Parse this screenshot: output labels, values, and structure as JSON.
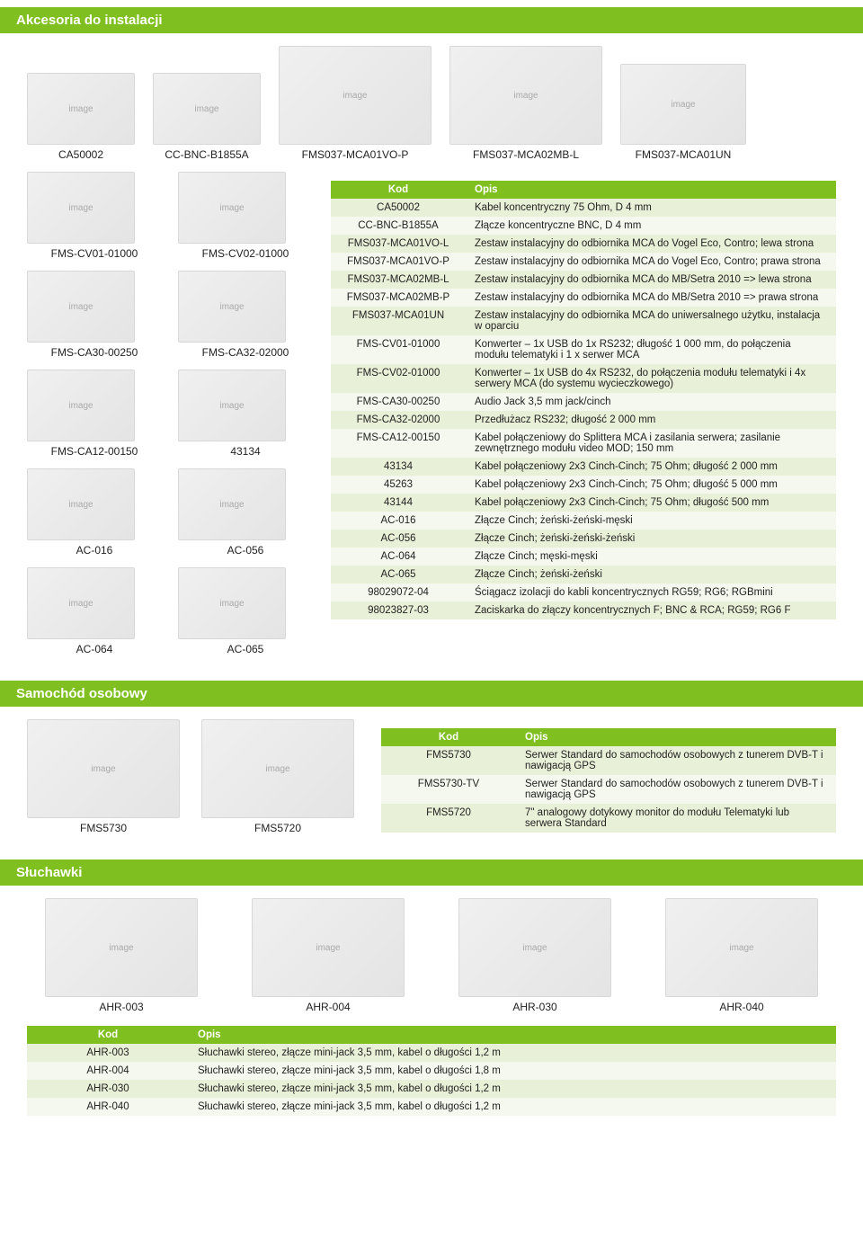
{
  "sections": {
    "s1": {
      "title": "Akcesoria do instalacji"
    },
    "s2": {
      "title": "Samochód osobowy"
    },
    "s3": {
      "title": "Słuchawki"
    }
  },
  "topRow": {
    "p1": "CA50002",
    "p2": "CC-BNC-B1855A",
    "p3": "FMS037-MCA01VO-P",
    "p4": "FMS037-MCA02MB-L",
    "p5": "FMS037-MCA01UN"
  },
  "leftProducts": [
    {
      "a": "FMS-CV01-01000",
      "b": "FMS-CV02-01000"
    },
    {
      "a": "FMS-CA30-00250",
      "b": "FMS-CA32-02000"
    },
    {
      "a": "FMS-CA12-00150",
      "b": "43134"
    },
    {
      "a": "AC-016",
      "b": "AC-056"
    },
    {
      "a": "AC-064",
      "b": "AC-065"
    }
  ],
  "tbl1": {
    "headers": {
      "c1": "Kod",
      "c2": "Opis"
    },
    "rows": [
      {
        "code": "CA50002",
        "desc": "Kabel koncentryczny 75 Ohm, D 4 mm"
      },
      {
        "code": "CC-BNC-B1855A",
        "desc": "Złącze koncentryczne BNC, D 4 mm"
      },
      {
        "code": "FMS037-MCA01VO-L",
        "desc": "Zestaw instalacyjny do odbiornika MCA do Vogel Eco, Contro; lewa strona"
      },
      {
        "code": "FMS037-MCA01VO-P",
        "desc": "Zestaw instalacyjny do odbiornika MCA do Vogel Eco, Contro; prawa strona"
      },
      {
        "code": "FMS037-MCA02MB-L",
        "desc": "Zestaw instalacyjny do odbiornika MCA do MB/Setra 2010 => lewa strona"
      },
      {
        "code": "FMS037-MCA02MB-P",
        "desc": "Zestaw instalacyjny do odbiornika MCA do MB/Setra 2010 => prawa strona"
      },
      {
        "code": "FMS037-MCA01UN",
        "desc": "Zestaw instalacyjny do odbiornika MCA do uniwersalnego użytku, instalacja w oparciu"
      },
      {
        "code": "FMS-CV01-01000",
        "desc": "Konwerter – 1x USB do 1x RS232; długość 1 000 mm, do połączenia modułu telematyki i 1 x serwer MCA"
      },
      {
        "code": "FMS-CV02-01000",
        "desc": "Konwerter – 1x USB do 4x RS232, do połączenia modułu telematyki i 4x serwery MCA (do systemu wycieczkowego)"
      },
      {
        "code": "FMS-CA30-00250",
        "desc": "Audio Jack 3,5 mm jack/cinch"
      },
      {
        "code": "FMS-CA32-02000",
        "desc": "Przedłużacz RS232; długość 2 000 mm"
      },
      {
        "code": "FMS-CA12-00150",
        "desc": "Kabel połączeniowy do Splittera MCA i zasilania serwera; zasilanie zewnętrznego modułu video MOD; 150 mm"
      },
      {
        "code": "43134",
        "desc": "Kabel połączeniowy 2x3 Cinch-Cinch; 75 Ohm; długość 2 000 mm"
      },
      {
        "code": "45263",
        "desc": "Kabel połączeniowy 2x3 Cinch-Cinch; 75 Ohm; długość 5 000 mm"
      },
      {
        "code": "43144",
        "desc": "Kabel połączeniowy 2x3 Cinch-Cinch; 75 Ohm; długość 500 mm"
      },
      {
        "code": "AC-016",
        "desc": "Złącze Cinch; żeński-żeński-męski"
      },
      {
        "code": "AC-056",
        "desc": "Złącze Cinch; żeński-żeński-żeński"
      },
      {
        "code": "AC-064",
        "desc": "Złącze Cinch; męski-męski"
      },
      {
        "code": "AC-065",
        "desc": "Złącze Cinch; żeński-żeński"
      },
      {
        "code": "98029072-04",
        "desc": "Ściągacz izolacji do kabli koncentrycznych RG59; RG6; RGBmini"
      },
      {
        "code": "98023827-03",
        "desc": "Zaciskarka do złączy koncentrycznych F; BNC & RCA; RG59; RG6 F"
      }
    ]
  },
  "sec2": {
    "p1": "FMS5730",
    "p2": "FMS5720",
    "headers": {
      "c1": "Kod",
      "c2": "Opis"
    },
    "rows": [
      {
        "code": "FMS5730",
        "desc": "Serwer Standard do samochodów osobowych z tunerem DVB-T i nawigacją GPS"
      },
      {
        "code": "FMS5730-TV",
        "desc": "Serwer Standard do samochodów osobowych z tunerem DVB-T i nawigacją GPS"
      },
      {
        "code": "FMS5720",
        "desc": "7\" analogowy dotykowy monitor do modułu Telematyki lub serwera Standard"
      }
    ]
  },
  "sec3": {
    "products": [
      "AHR-003",
      "AHR-004",
      "AHR-030",
      "AHR-040"
    ],
    "headers": {
      "c1": "Kod",
      "c2": "Opis"
    },
    "rows": [
      {
        "code": "AHR-003",
        "desc": "Słuchawki stereo, złącze mini-jack 3,5 mm, kabel o długości 1,2 m"
      },
      {
        "code": "AHR-004",
        "desc": "Słuchawki stereo, złącze mini-jack 3,5 mm, kabel o długości 1,8 m"
      },
      {
        "code": "AHR-030",
        "desc": "Słuchawki stereo, złącze mini-jack 3,5 mm, kabel o długości 1,2 m"
      },
      {
        "code": "AHR-040",
        "desc": "Słuchawki stereo, złącze mini-jack 3,5 mm, kabel o długości 1,2 m"
      }
    ]
  },
  "placeholders": {
    "img": "image"
  },
  "colors": {
    "green": "#7fbf1f",
    "row_a": "#e9f0d8",
    "row_b": "#f5f8ee"
  }
}
